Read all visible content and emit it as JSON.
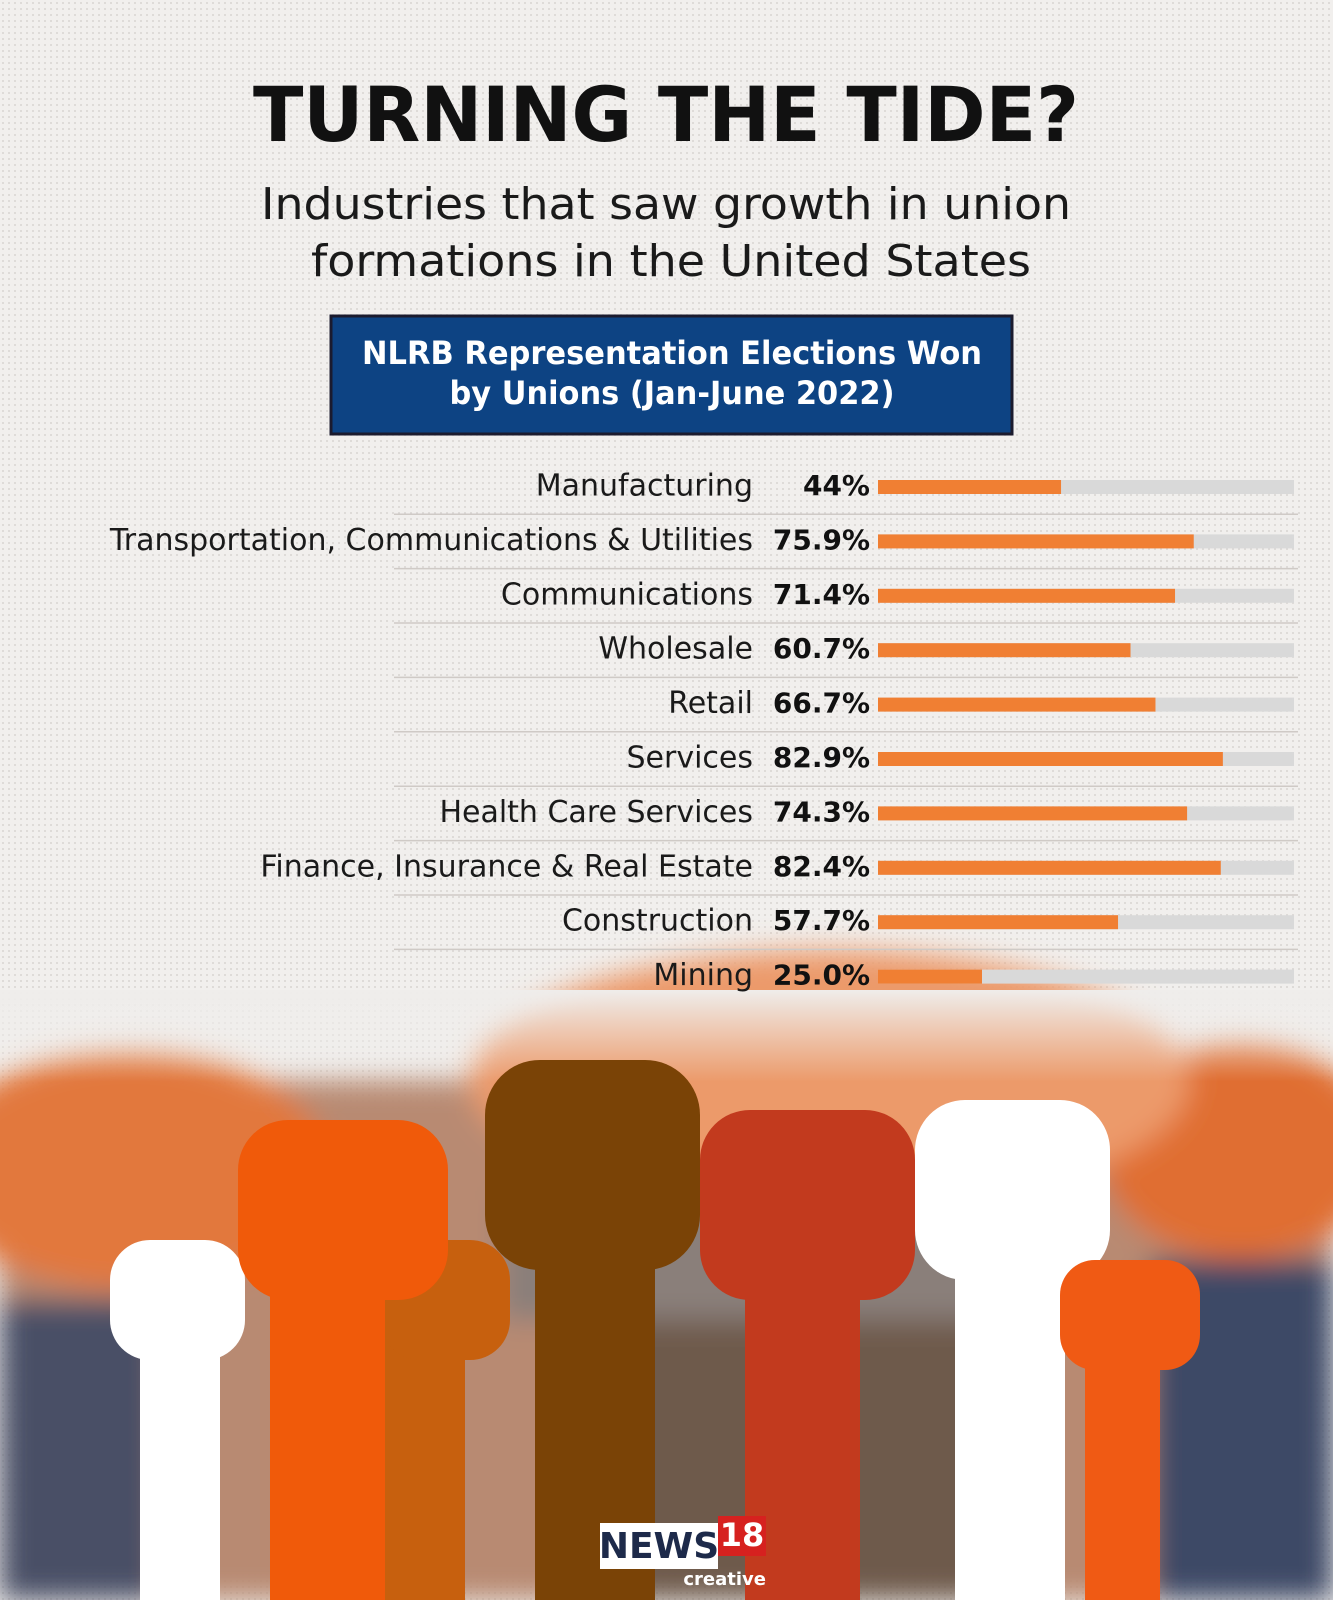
{
  "chart_data": {
    "type": "bar",
    "title": "TURNING THE TIDE?",
    "subtitle": [
      "Industries that saw growth in union",
      "formations in the United States"
    ],
    "panel_title": [
      "NLRB Representation Elections Won",
      "by Unions (Jan-June 2022)"
    ],
    "categories": [
      "Manufacturing",
      "Transportation, Communications & Utilities",
      "Communications",
      "Wholesale",
      "Retail",
      "Services",
      "Health Care Services",
      "Finance, Insurance & Real Estate",
      "Construction",
      "Mining"
    ],
    "values": [
      44,
      75.9,
      71.4,
      60.7,
      66.7,
      82.9,
      74.3,
      82.4,
      57.7,
      25.0
    ],
    "value_labels": [
      "44%",
      "75.9%",
      "71.4%",
      "60.7%",
      "66.7%",
      "82.9%",
      "74.3%",
      "82.4%",
      "57.7%",
      "25.0%"
    ],
    "xlim": [
      0,
      100
    ],
    "color": "#f07f33",
    "track_color": "#d9d9d9"
  },
  "logo": {
    "name": "NEWS",
    "number": "18",
    "tag": "creative"
  }
}
